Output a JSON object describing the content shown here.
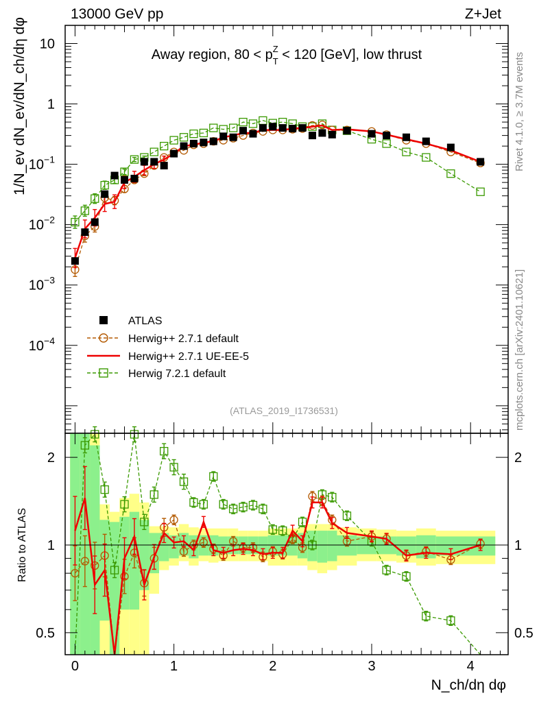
{
  "chart_data": {
    "type": "line",
    "header_left": "13000 GeV pp",
    "header_right": "Z+Jet",
    "title": "Away region, 80 < p_T^Z < 120 [GeV], low thrust",
    "title_parts": {
      "pre": "Away region, 80 < p",
      "sup": "Z",
      "sub": "T",
      "post": " < 120 [GeV], low thrust"
    },
    "ylabel_top": "1/N_ev dN_ev/dN_ch/dη dφ",
    "ylabel_bottom": "Ratio to ATLAS",
    "xlabel": "N_ch/dη dφ",
    "analysis_label": "(ATLAS_2019_I1736531)",
    "side_label_top": "Rivet 4.1.0, ≥ 3.7M events",
    "side_label_bottom": "mcplots.cern.ch [arXiv:2401.10621]",
    "main_yscale": "log",
    "main_ylim": [
      3.5e-06,
      20
    ],
    "main_yticks": [
      {
        "v": 0.0001,
        "b": "10",
        "e": "−4"
      },
      {
        "v": 0.001,
        "b": "10",
        "e": "−3"
      },
      {
        "v": 0.01,
        "b": "10",
        "e": "−2"
      },
      {
        "v": 0.1,
        "b": "10",
        "e": "−1"
      },
      {
        "v": 1,
        "b": "1",
        "e": ""
      },
      {
        "v": 10,
        "b": "10",
        "e": ""
      }
    ],
    "xlim": [
      -0.1,
      4.38
    ],
    "xticks": [
      {
        "v": 0,
        "label": "0"
      },
      {
        "v": 1,
        "label": "1"
      },
      {
        "v": 2,
        "label": "2"
      },
      {
        "v": 3,
        "label": "3"
      },
      {
        "v": 4,
        "label": "4"
      }
    ],
    "ratio_yscale": "log",
    "ratio_ylim": [
      0.42,
      2.42
    ],
    "ratio_yticks": [
      {
        "v": 0.5,
        "label": "0.5"
      },
      {
        "v": 1,
        "label": "1"
      },
      {
        "v": 2,
        "label": "2"
      }
    ],
    "x": [
      0.0,
      0.1,
      0.2,
      0.3,
      0.4,
      0.5,
      0.6,
      0.7,
      0.8,
      0.9,
      1.0,
      1.1,
      1.2,
      1.3,
      1.4,
      1.5,
      1.6,
      1.7,
      1.8,
      1.9,
      2.0,
      2.1,
      2.2,
      2.3,
      2.4,
      2.5,
      2.6,
      2.75,
      3.0,
      3.15,
      3.35,
      3.55,
      3.8,
      4.1
    ],
    "legend": [
      "ATLAS",
      "Herwig++ 2.7.1 default",
      "Herwig++ 2.7.1 UE-EE-5",
      "Herwig 7.2.1 default"
    ],
    "series": [
      {
        "name": "ATLAS",
        "color": "#000000",
        "values": [
          0.0025,
          0.0075,
          0.011,
          0.032,
          0.065,
          0.055,
          0.058,
          0.11,
          0.11,
          0.095,
          0.15,
          0.2,
          0.22,
          0.23,
          0.24,
          0.29,
          0.28,
          0.36,
          0.32,
          0.4,
          0.42,
          0.4,
          0.39,
          0.4,
          0.3,
          0.33,
          0.31,
          0.36,
          0.32,
          0.3,
          0.28,
          0.24,
          0.19,
          0.11
        ]
      },
      {
        "name": "Herwig++ 2.7.1 default",
        "color": "#b35900",
        "values": [
          0.0018,
          0.0065,
          0.0093,
          0.028,
          0.025,
          0.039,
          0.055,
          0.07,
          0.095,
          0.13,
          0.16,
          0.17,
          0.21,
          0.22,
          0.24,
          0.25,
          0.27,
          0.3,
          0.33,
          0.35,
          0.37,
          0.37,
          0.38,
          0.39,
          0.44,
          0.45,
          0.37,
          0.37,
          0.35,
          0.31,
          0.25,
          0.22,
          0.16,
          0.105
        ],
        "ratio": [
          0.8,
          0.88,
          0.85,
          0.92,
          0.38,
          0.78,
          0.94,
          0.74,
          0.9,
          1.15,
          1.22,
          0.95,
          1.0,
          1.02,
          0.97,
          0.92,
          1.03,
          0.98,
          0.98,
          0.91,
          0.95,
          0.93,
          1.05,
          0.98,
          1.47,
          1.42,
          1.22,
          1.03,
          1.07,
          1.05,
          0.92,
          0.95,
          0.89,
          1.01
        ]
      },
      {
        "name": "Herwig++ 2.7.1 UE-EE-5",
        "color": "#ee0000",
        "values": [
          0.0028,
          0.0085,
          0.013,
          0.022,
          0.024,
          0.05,
          0.062,
          0.08,
          0.1,
          0.12,
          0.15,
          0.2,
          0.21,
          0.23,
          0.24,
          0.28,
          0.3,
          0.33,
          0.33,
          0.37,
          0.37,
          0.37,
          0.39,
          0.4,
          0.42,
          0.44,
          0.37,
          0.38,
          0.35,
          0.31,
          0.26,
          0.22,
          0.17,
          0.11
        ],
        "ratio": [
          1.12,
          1.45,
          0.73,
          0.82,
          0.37,
          0.9,
          1.07,
          0.73,
          0.91,
          1.1,
          1.02,
          1.03,
          0.96,
          1.2,
          0.96,
          0.94,
          0.96,
          0.97,
          0.96,
          0.93,
          0.94,
          0.94,
          1.12,
          1.03,
          1.4,
          1.4,
          1.19,
          1.1,
          1.07,
          1.05,
          0.92,
          0.94,
          0.93,
          1.0
        ]
      },
      {
        "name": "Herwig 7.2.1 default",
        "color": "#3a9900",
        "values": [
          0.011,
          0.017,
          0.027,
          0.045,
          0.055,
          0.075,
          0.12,
          0.13,
          0.16,
          0.2,
          0.25,
          0.28,
          0.32,
          0.33,
          0.4,
          0.38,
          0.4,
          0.5,
          0.47,
          0.53,
          0.48,
          0.5,
          0.47,
          0.42,
          0.42,
          0.47,
          0.37,
          0.36,
          0.26,
          0.22,
          0.16,
          0.13,
          0.07,
          0.035
        ],
        "ratio": [
          0.4,
          2.2,
          2.4,
          1.55,
          0.82,
          1.38,
          2.4,
          1.2,
          1.49,
          2.1,
          1.85,
          1.65,
          1.4,
          1.38,
          1.72,
          1.38,
          1.33,
          1.35,
          1.37,
          1.33,
          1.13,
          1.12,
          1.05,
          1.2,
          1.0,
          1.49,
          1.46,
          1.26,
          1.03,
          0.82,
          0.78,
          0.57,
          0.55,
          0.4
        ]
      }
    ],
    "ratio_bands": {
      "edges": [
        -0.05,
        0.05,
        0.15,
        0.25,
        0.35,
        0.45,
        0.55,
        0.65,
        0.75,
        0.85,
        0.95,
        1.05,
        1.15,
        1.25,
        1.35,
        1.45,
        1.55,
        1.65,
        1.75,
        1.85,
        1.95,
        2.05,
        2.15,
        2.25,
        2.35,
        2.45,
        2.55,
        2.65,
        2.85,
        3.05,
        3.25,
        3.45,
        3.65,
        3.95,
        4.25
      ],
      "yellow_lo": [
        0.42,
        0.42,
        0.42,
        0.42,
        0.42,
        0.42,
        0.42,
        0.42,
        0.68,
        0.82,
        0.85,
        0.88,
        0.85,
        0.88,
        0.87,
        0.88,
        0.88,
        0.88,
        0.88,
        0.88,
        0.85,
        0.85,
        0.85,
        0.85,
        0.82,
        0.8,
        0.82,
        0.85,
        0.88,
        0.88,
        0.87,
        0.85,
        0.86,
        0.86
      ],
      "yellow_hi": [
        2.42,
        2.42,
        2.42,
        1.38,
        1.3,
        1.45,
        1.5,
        1.4,
        1.16,
        1.16,
        1.15,
        1.18,
        1.15,
        1.14,
        1.14,
        1.14,
        1.14,
        1.12,
        1.12,
        1.12,
        1.14,
        1.14,
        1.14,
        1.15,
        1.18,
        1.18,
        1.18,
        1.15,
        1.14,
        1.13,
        1.12,
        1.14,
        1.12,
        1.12
      ],
      "green_lo": [
        0.42,
        0.42,
        0.42,
        0.55,
        0.42,
        0.6,
        0.6,
        0.7,
        0.8,
        0.88,
        0.9,
        0.92,
        0.9,
        0.92,
        0.92,
        0.93,
        0.93,
        0.93,
        0.93,
        0.93,
        0.92,
        0.92,
        0.92,
        0.9,
        0.88,
        0.87,
        0.88,
        0.92,
        0.93,
        0.93,
        0.92,
        0.9,
        0.92,
        0.92
      ],
      "green_hi": [
        2.42,
        2.42,
        2.2,
        1.22,
        1.2,
        1.25,
        1.3,
        1.22,
        1.1,
        1.1,
        1.08,
        1.1,
        1.08,
        1.08,
        1.08,
        1.07,
        1.07,
        1.07,
        1.07,
        1.07,
        1.08,
        1.08,
        1.08,
        1.1,
        1.12,
        1.12,
        1.12,
        1.08,
        1.07,
        1.07,
        1.07,
        1.08,
        1.07,
        1.07
      ]
    }
  }
}
